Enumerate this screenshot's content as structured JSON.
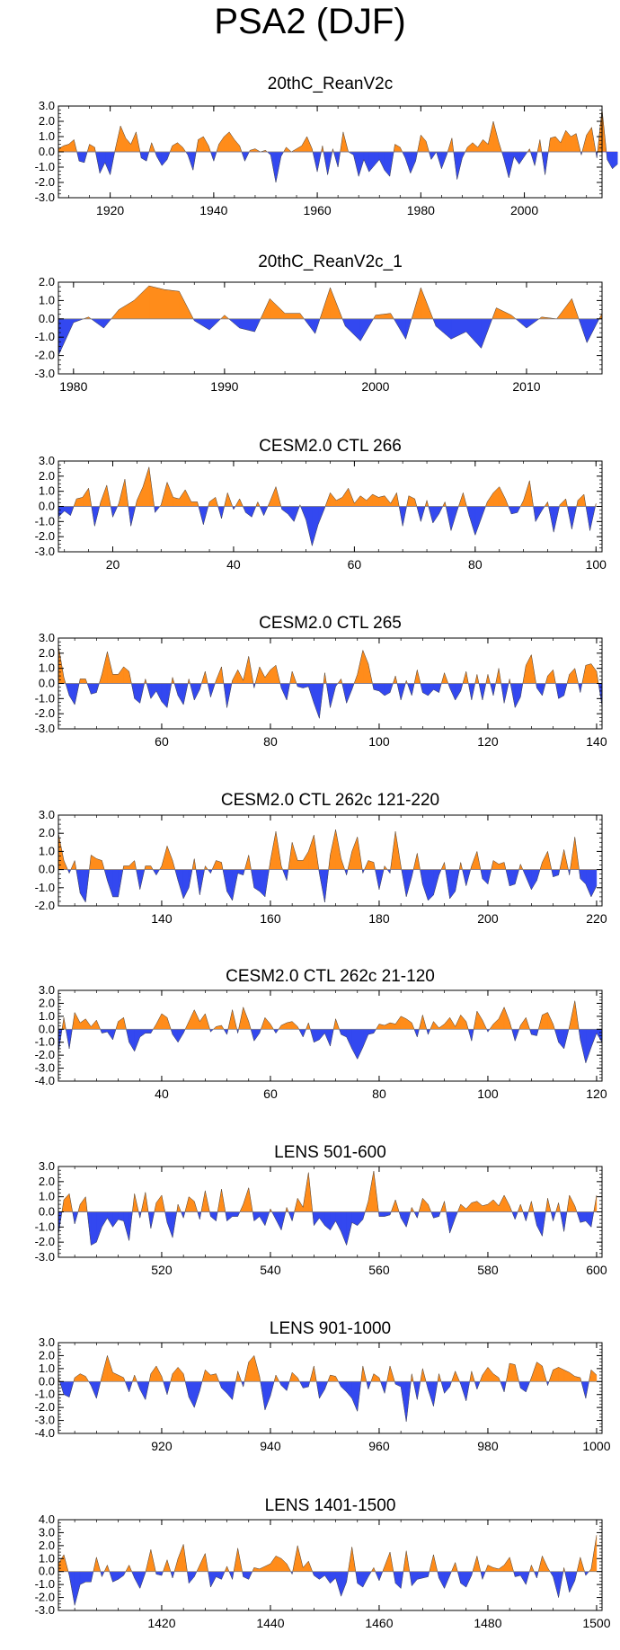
{
  "figure_title": "PSA2 (DJF)",
  "colors": {
    "positive": "#ff8c1a",
    "negative": "#3348f0",
    "axis": "#000000"
  },
  "chart_data": [
    {
      "type": "area",
      "title": "20thC_ReanV2c",
      "xlabel": "",
      "ylabel": "",
      "xlim": [
        1910,
        2015
      ],
      "ylim": [
        -3,
        3
      ],
      "yticks": [
        3,
        2,
        1,
        0,
        -1,
        -2,
        -3
      ],
      "ytick_labels": [
        "3.0",
        "2.0",
        "1.0",
        "0.0",
        "-1.0",
        "-2.0",
        "-3.0"
      ],
      "xticks": [
        1920,
        1940,
        1960,
        1980,
        2000
      ],
      "xtick_labels": [
        "1920",
        "1940",
        "1960",
        "1980",
        "2000"
      ],
      "x_start": 1910,
      "x_step": 1,
      "values": [
        0.2,
        0.4,
        0.5,
        0.8,
        -0.6,
        -0.7,
        0.5,
        0.3,
        -1.4,
        -0.7,
        -1.5,
        0.2,
        1.7,
        0.9,
        0.5,
        1.3,
        -0.4,
        -0.6,
        0.6,
        -0.3,
        -0.9,
        -0.5,
        0.4,
        0.6,
        0.3,
        -0.2,
        -1.2,
        0.8,
        1.0,
        0.4,
        -0.6,
        0.5,
        1.0,
        1.3,
        0.8,
        0.4,
        -0.6,
        0.1,
        0.2,
        0.0,
        0.1,
        -0.2,
        -2.0,
        -0.3,
        0.3,
        0.0,
        0.2,
        0.4,
        1.0,
        0.2,
        -1.3,
        0.4,
        -1.5,
        0.2,
        -1.0,
        1.3,
        0.0,
        -0.2,
        -1.6,
        -0.5,
        -1.3,
        -0.9,
        -0.5,
        -1.2,
        -1.6,
        0.5,
        0.3,
        -0.4,
        -1.4,
        -0.6,
        1.1,
        0.7,
        -0.5,
        0.0,
        -1.1,
        -0.2,
        0.9,
        -1.8,
        -0.4,
        0.3,
        0.6,
        0.3,
        0.8,
        0.5,
        2.0,
        0.7,
        -0.4,
        -1.7,
        -0.3,
        -0.8,
        -0.3,
        0.2,
        -0.9,
        0.8,
        -1.5,
        0.9,
        1.0,
        0.6,
        1.4,
        1.0,
        1.2,
        -0.2,
        1.1,
        1.6,
        -0.4,
        2.8,
        -0.5,
        -1.1,
        -0.8
      ]
    },
    {
      "type": "area",
      "title": "20thC_ReanV2c_1",
      "xlabel": "",
      "ylabel": "",
      "xlim": [
        1979,
        2015
      ],
      "ylim": [
        -3,
        2
      ],
      "yticks": [
        2,
        1,
        0,
        -1,
        -2,
        -3
      ],
      "ytick_labels": [
        "2.0",
        "1.0",
        "0.0",
        "-1.0",
        "-2.0",
        "-3.0"
      ],
      "xticks": [
        1980,
        1990,
        2000,
        2010
      ],
      "xtick_labels": [
        "1980",
        "1990",
        "2000",
        "2010"
      ],
      "x_start": 1979,
      "x_step": 1,
      "values": [
        -2.0,
        -0.2,
        0.1,
        -0.5,
        0.5,
        1.0,
        1.8,
        1.6,
        1.5,
        -0.1,
        -0.6,
        0.2,
        -0.5,
        -0.7,
        1.1,
        0.3,
        0.3,
        -0.8,
        1.7,
        -0.4,
        -1.2,
        0.2,
        0.3,
        -1.1,
        1.7,
        -0.4,
        -1.1,
        -0.7,
        -1.6,
        0.6,
        0.2,
        -0.5,
        0.1,
        0.0,
        1.1,
        -1.3,
        0.3
      ]
    },
    {
      "type": "area",
      "title": "CESM2.0 CTL 266",
      "xlabel": "",
      "ylabel": "",
      "xlim": [
        11,
        101
      ],
      "ylim": [
        -3,
        3
      ],
      "yticks": [
        3,
        2,
        1,
        0,
        -1,
        -2,
        -3
      ],
      "ytick_labels": [
        "3.0",
        "2.0",
        "1.0",
        "0.0",
        "-1.0",
        "-2.0",
        "-3.0"
      ],
      "xticks": [
        20,
        40,
        60,
        80,
        100
      ],
      "xtick_labels": [
        "20",
        "40",
        "60",
        "80",
        "100"
      ],
      "x_start": 11,
      "x_step": 1,
      "values": [
        -0.7,
        -0.3,
        -0.6,
        0.5,
        0.6,
        1.2,
        -1.3,
        0.3,
        1.4,
        -0.7,
        0.2,
        1.8,
        -1.3,
        0.4,
        1.3,
        2.6,
        -0.4,
        0.1,
        1.6,
        0.6,
        0.5,
        1.1,
        0.3,
        0.3,
        -1.2,
        0.3,
        0.6,
        -0.8,
        0.9,
        -0.2,
        0.5,
        -0.4,
        -0.7,
        0.3,
        -0.6,
        0.3,
        1.3,
        -0.2,
        -0.5,
        -1.0,
        0.1,
        -0.9,
        -2.6,
        -1.2,
        -0.2,
        0.9,
        0.4,
        0.6,
        1.2,
        0.2,
        0.7,
        0.4,
        0.8,
        0.6,
        0.7,
        0.2,
        0.9,
        -1.3,
        0.7,
        0.5,
        -1.0,
        0.4,
        -1.1,
        -0.5,
        0.3,
        -1.6,
        -0.3,
        0.9,
        -0.6,
        -1.9,
        -0.8,
        0.3,
        0.9,
        1.3,
        0.5,
        -0.5,
        -0.4,
        0.4,
        1.7,
        -1.0,
        -0.3,
        0.3,
        -1.7,
        0.1,
        0.5,
        -1.5,
        0.4,
        0.8,
        -1.6,
        0.2
      ]
    },
    {
      "type": "area",
      "title": "CESM2.0 CTL 265",
      "xlabel": "",
      "ylabel": "",
      "xlim": [
        41,
        141
      ],
      "ylim": [
        -3,
        3
      ],
      "yticks": [
        3,
        2,
        1,
        0,
        -1,
        -2,
        -3
      ],
      "ytick_labels": [
        "3.0",
        "2.0",
        "1.0",
        "0.0",
        "-1.0",
        "-2.0",
        "-3.0"
      ],
      "xticks": [
        60,
        80,
        100,
        120,
        140
      ],
      "xtick_labels": [
        "60",
        "80",
        "100",
        "120",
        "140"
      ],
      "x_start": 41,
      "x_step": 1,
      "values": [
        2.5,
        0.4,
        -0.8,
        -1.4,
        0.3,
        0.3,
        -0.7,
        -0.6,
        0.6,
        2.1,
        0.6,
        0.6,
        1.1,
        0.8,
        -1.0,
        -1.3,
        0.3,
        -1.0,
        -0.5,
        -1.2,
        -1.6,
        0.4,
        -0.8,
        -1.4,
        0.3,
        -1.1,
        -0.4,
        0.8,
        -0.9,
        0.2,
        1.1,
        -1.6,
        0.2,
        0.9,
        0.2,
        1.8,
        -0.3,
        1.1,
        0.4,
        0.9,
        1.2,
        -0.3,
        -1.1,
        0.8,
        -0.2,
        -0.3,
        -0.2,
        -1.3,
        -2.3,
        0.7,
        -1.6,
        -0.2,
        0.3,
        -1.3,
        -0.4,
        0.6,
        2.2,
        1.3,
        -0.4,
        -0.5,
        -0.8,
        -0.6,
        0.5,
        -1.1,
        0.2,
        -0.8,
        0.9,
        -0.6,
        -0.8,
        -0.4,
        -0.6,
        0.7,
        -0.3,
        -1.1,
        -0.5,
        0.8,
        -1.1,
        0.6,
        -1.1,
        0.6,
        -0.8,
        1.0,
        -1.3,
        0.3,
        -1.6,
        -0.9,
        1.2,
        1.9,
        -0.3,
        -0.8,
        0.5,
        0.9,
        -1.0,
        -0.8,
        0.6,
        1.0,
        -0.6,
        1.2,
        1.3,
        0.8,
        -1.5
      ]
    },
    {
      "type": "area",
      "title": "CESM2.0 CTL 262c 121-220",
      "xlabel": "",
      "ylabel": "",
      "xlim": [
        121,
        221
      ],
      "ylim": [
        -2,
        3
      ],
      "yticks": [
        3,
        2,
        1,
        0,
        -1,
        -2
      ],
      "ytick_labels": [
        "3.0",
        "2.0",
        "1.0",
        "0.0",
        "-1.0",
        "-2.0"
      ],
      "xticks": [
        140,
        160,
        180,
        200,
        220
      ],
      "xtick_labels": [
        "140",
        "160",
        "180",
        "200",
        "220"
      ],
      "x_start": 121,
      "x_step": 1,
      "values": [
        2.0,
        0.5,
        -0.2,
        0.5,
        -1.3,
        -1.8,
        0.8,
        0.6,
        0.5,
        -0.6,
        -1.5,
        -1.5,
        0.2,
        0.2,
        0.5,
        -1.1,
        0.2,
        0.2,
        -0.3,
        0.2,
        1.3,
        0.5,
        -0.6,
        -1.6,
        -1.0,
        0.6,
        -1.4,
        0.2,
        -0.2,
        0.5,
        0.4,
        -1.2,
        -1.7,
        -0.2,
        -0.3,
        0.8,
        -1.0,
        -1.2,
        -1.5,
        0.5,
        2.1,
        0.2,
        -0.6,
        1.5,
        0.5,
        0.5,
        1.0,
        1.9,
        -0.2,
        -1.8,
        0.8,
        2.2,
        0.6,
        -0.3,
        1.0,
        1.8,
        -0.2,
        0.5,
        0.4,
        -1.1,
        0.2,
        -0.2,
        2.1,
        0.2,
        -1.5,
        -0.4,
        0.9,
        -0.8,
        -1.7,
        -1.4,
        -0.3,
        0.4,
        -1.6,
        -1.2,
        0.4,
        -0.9,
        0.2,
        1.0,
        -0.5,
        -0.8,
        0.5,
        0.3,
        0.4,
        -0.9,
        -0.8,
        0.3,
        -0.4,
        -1.1,
        -0.6,
        0.4,
        1.0,
        -0.4,
        -0.3,
        1.1,
        -0.3,
        1.8,
        -0.5,
        -0.8,
        -1.5,
        -0.9
      ]
    },
    {
      "type": "area",
      "title": "CESM2.0 CTL 262c 21-120",
      "xlabel": "",
      "ylabel": "",
      "xlim": [
        21,
        121
      ],
      "ylim": [
        -4,
        3
      ],
      "yticks": [
        3,
        2,
        1,
        0,
        -1,
        -2,
        -3,
        -4
      ],
      "ytick_labels": [
        "3.0",
        "2.0",
        "1.0",
        "0.0",
        "-1.0",
        "-2.0",
        "-3.0",
        "-4.0"
      ],
      "xticks": [
        40,
        60,
        80,
        100,
        120
      ],
      "xtick_labels": [
        "40",
        "60",
        "80",
        "100",
        "120"
      ],
      "x_start": 21,
      "x_step": 1,
      "values": [
        -1.8,
        0.9,
        -1.5,
        1.3,
        0.5,
        0.8,
        0.2,
        0.7,
        -0.3,
        -0.2,
        -0.8,
        0.6,
        0.9,
        -1.0,
        -1.7,
        -0.6,
        -0.3,
        -0.3,
        0.4,
        1.2,
        0.9,
        -0.4,
        -1.0,
        -0.3,
        0.6,
        1.5,
        0.6,
        1.2,
        -0.2,
        0.2,
        0.3,
        -0.4,
        1.5,
        -0.3,
        1.7,
        0.6,
        -0.9,
        -0.3,
        0.9,
        0.4,
        -0.3,
        0.3,
        0.5,
        0.6,
        0.2,
        -0.6,
        0.5,
        -1.0,
        -0.8,
        -0.3,
        -1.3,
        0.8,
        -0.4,
        -0.6,
        -1.5,
        -2.3,
        -1.4,
        -0.4,
        -0.3,
        0.4,
        0.3,
        0.5,
        0.4,
        1.0,
        0.8,
        0.5,
        -0.6,
        1.1,
        -0.4,
        0.6,
        0.1,
        0.4,
        0.9,
        0.2,
        1.1,
        0.6,
        -0.9,
        1.4,
        0.7,
        -0.2,
        0.4,
        0.8,
        1.7,
        0.6,
        -0.9,
        0.3,
        0.9,
        -0.4,
        -0.5,
        1.1,
        1.3,
        0.4,
        -1.0,
        -1.5,
        0.2,
        2.2,
        -0.8,
        -2.6,
        -1.4,
        -0.3,
        -1.0
      ]
    },
    {
      "type": "area",
      "title": "LENS 501-600",
      "xlabel": "",
      "ylabel": "",
      "xlim": [
        501,
        601
      ],
      "ylim": [
        -3,
        3
      ],
      "yticks": [
        3,
        2,
        1,
        0,
        -1,
        -2,
        -3
      ],
      "ytick_labels": [
        "3.0",
        "2.0",
        "1.0",
        "0.0",
        "-1.0",
        "-2.0",
        "-3.0"
      ],
      "xticks": [
        520,
        540,
        560,
        580,
        600
      ],
      "xtick_labels": [
        "520",
        "540",
        "560",
        "580",
        "600"
      ],
      "x_start": 501,
      "x_step": 1,
      "values": [
        -1.5,
        0.8,
        1.2,
        -0.8,
        0.5,
        1.0,
        -2.2,
        -2.0,
        -1.0,
        -0.4,
        -1.0,
        -0.5,
        -0.6,
        -1.9,
        1.2,
        -0.4,
        1.3,
        -1.1,
        0.6,
        1.1,
        -0.7,
        -1.7,
        0.5,
        -0.4,
        1.0,
        0.7,
        -0.5,
        1.4,
        -0.3,
        -0.6,
        1.5,
        -0.6,
        -0.3,
        -0.3,
        0.5,
        1.6,
        -0.6,
        -0.3,
        -0.9,
        0.2,
        -0.5,
        -1.2,
        0.3,
        -0.6,
        0.9,
        0.3,
        2.6,
        -0.9,
        -0.4,
        -0.9,
        -1.2,
        -0.6,
        -1.3,
        -2.2,
        -0.7,
        -0.9,
        -0.5,
        0.7,
        2.7,
        -0.3,
        -0.3,
        -0.2,
        0.8,
        -0.4,
        -1.0,
        0.3,
        -0.4,
        0.9,
        0.5,
        -0.4,
        -0.3,
        0.7,
        -1.4,
        -0.4,
        0.5,
        0.2,
        0.6,
        0.7,
        0.4,
        0.5,
        0.8,
        0.4,
        1.1,
        0.4,
        -0.5,
        0.5,
        -0.6,
        0.7,
        -0.9,
        -1.6,
        0.9,
        -0.6,
        0.6,
        -1.3,
        1.1,
        0.4,
        -0.7,
        -0.6,
        -1.0,
        1.1
      ]
    },
    {
      "type": "area",
      "title": "LENS 901-1000",
      "xlabel": "",
      "ylabel": "",
      "xlim": [
        901,
        1001
      ],
      "ylim": [
        -4,
        3
      ],
      "yticks": [
        3,
        2,
        1,
        0,
        -1,
        -2,
        -3,
        -4
      ],
      "ytick_labels": [
        "3.0",
        "2.0",
        "1.0",
        "0.0",
        "-1.0",
        "-2.0",
        "-3.0",
        "-4.0"
      ],
      "xticks": [
        920,
        940,
        960,
        980,
        1000
      ],
      "xtick_labels": [
        "920",
        "940",
        "960",
        "980",
        "1000"
      ],
      "x_start": 901,
      "x_step": 1,
      "values": [
        0.3,
        -1.0,
        -1.2,
        0.3,
        0.6,
        0.4,
        -0.3,
        -1.3,
        0.4,
        2.0,
        0.7,
        0.5,
        0.3,
        -0.8,
        0.5,
        -0.6,
        -1.4,
        0.6,
        1.2,
        0.4,
        -1.0,
        0.6,
        1.1,
        0.6,
        -1.2,
        -2.0,
        -0.7,
        0.9,
        0.5,
        0.6,
        -0.5,
        -0.9,
        -1.4,
        0.8,
        -0.4,
        1.5,
        2.0,
        0.4,
        -2.2,
        -1.1,
        0.5,
        -0.3,
        -0.7,
        0.7,
        0.3,
        -0.5,
        -0.4,
        1.2,
        -1.3,
        -0.6,
        0.5,
        0.4,
        -0.4,
        -0.8,
        -1.3,
        -2.3,
        1.2,
        -0.6,
        0.6,
        0.3,
        -0.9,
        1.2,
        -0.2,
        -0.4,
        -3.1,
        0.6,
        -1.4,
        1.0,
        -0.6,
        -1.9,
        0.6,
        -0.9,
        -0.4,
        0.8,
        -0.2,
        -1.5,
        0.8,
        -0.6,
        0.5,
        1.1,
        0.6,
        0.3,
        -0.8,
        1.4,
        1.3,
        -0.5,
        -0.8,
        0.3,
        1.5,
        1.2,
        -0.3,
        0.9,
        1.1,
        0.9,
        0.7,
        0.4,
        0.3,
        -1.3,
        0.9,
        0.5
      ]
    },
    {
      "type": "area",
      "title": "LENS 1401-1500",
      "xlabel": "",
      "ylabel": "",
      "xlim": [
        1401,
        1501
      ],
      "ylim": [
        -3,
        4
      ],
      "yticks": [
        4,
        3,
        2,
        1,
        0,
        -1,
        -2,
        -3
      ],
      "ytick_labels": [
        "4.0",
        "3.0",
        "2.0",
        "1.0",
        "0.0",
        "-1.0",
        "-2.0",
        "-3.0"
      ],
      "xticks": [
        1420,
        1440,
        1460,
        1480,
        1500
      ],
      "xtick_labels": [
        "1420",
        "1440",
        "1460",
        "1480",
        "1500"
      ],
      "x_start": 1401,
      "x_step": 1,
      "values": [
        0.6,
        1.3,
        -0.3,
        -2.6,
        -1.0,
        -0.8,
        -0.8,
        1.1,
        -0.4,
        0.5,
        -0.8,
        -0.6,
        -0.3,
        0.5,
        -0.5,
        -1.3,
        -0.1,
        1.7,
        -0.2,
        -0.3,
        0.9,
        -0.5,
        1.0,
        2.1,
        -0.9,
        -0.4,
        0.5,
        1.4,
        -1.2,
        -0.4,
        -0.6,
        0.4,
        -0.6,
        1.8,
        -0.4,
        -0.6,
        0.3,
        0.2,
        0.4,
        0.6,
        1.2,
        1.0,
        0.6,
        -0.2,
        2.0,
        0.3,
        0.8,
        -0.3,
        -0.6,
        -0.3,
        -0.9,
        -0.5,
        -1.9,
        -0.8,
        1.9,
        -0.9,
        -1.2,
        -0.4,
        0.3,
        -0.7,
        0.4,
        1.5,
        -0.9,
        -1.3,
        1.6,
        -1.1,
        -0.6,
        -0.5,
        -0.4,
        1.3,
        -0.5,
        -1.3,
        -0.3,
        0.7,
        -0.9,
        -1.2,
        -0.3,
        1.2,
        -0.6,
        0.5,
        0.3,
        0.2,
        0.5,
        1.1,
        -0.4,
        -0.3,
        -1.0,
        0.5,
        -0.5,
        1.2,
        0.3,
        -0.4,
        -2.0,
        0.3,
        -1.6,
        -0.7,
        1.1,
        -0.3,
        0.2,
        2.8
      ]
    }
  ]
}
